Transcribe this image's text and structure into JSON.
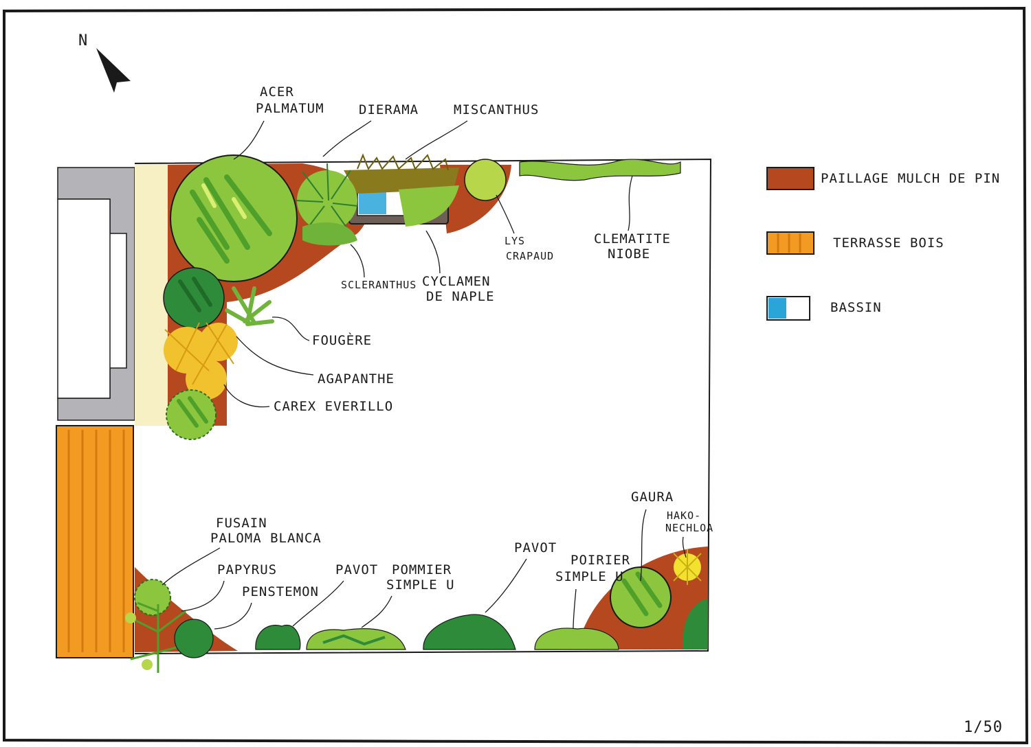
{
  "north": "N",
  "scale": "1/50",
  "legend": [
    {
      "label": "PAILLAGE MULCH DE PIN",
      "color": "#b5481f",
      "kind": "paillage"
    },
    {
      "label": "TERRASSE BOIS",
      "color": "#f29a22",
      "kind": "terrasse"
    },
    {
      "label": "BASSIN",
      "color": "#2aa5d8",
      "kind": "bassin"
    }
  ],
  "plants": {
    "acer": [
      "ACER",
      "PALMATUM"
    ],
    "dierama": "DIERAMA",
    "miscanthus": "MISCANTHUS",
    "scleranthus": "SCLERANTHUS",
    "cyclamen": [
      "CYCLAMEN",
      "DE NAPLE"
    ],
    "lys": [
      "LYS",
      "CRAPAUD"
    ],
    "clematite": [
      "CLEMATITE",
      "NIOBE"
    ],
    "fougere": "FOUGÈRE",
    "agapanthe": "AGAPANTHE",
    "carex": "CAREX EVERILLO",
    "fusain": [
      "FUSAIN",
      "PALOMA BLANCA"
    ],
    "papyrus": "PAPYRUS",
    "penstemon": "PENSTEMON",
    "pavot1": "PAVOT",
    "pommier": [
      "POMMIER",
      "SIMPLE U"
    ],
    "pavot2": "PAVOT",
    "poirier": [
      "POIRIER",
      "SIMPLE U"
    ],
    "gaura": "GAURA",
    "hakonechloa": [
      "HAKO-",
      "NECHLOA"
    ]
  },
  "colors": {
    "mulch": "#b5481f",
    "wood": "#f29a22",
    "water": "#2aa5d8",
    "light_green": "#8cc63f",
    "lime": "#b8d64a",
    "dark_green": "#2e8b3a",
    "olive": "#8a7a1e",
    "yellow": "#f2c12e",
    "grey": "#b4b4b8",
    "cream": "#f6f0c4"
  }
}
